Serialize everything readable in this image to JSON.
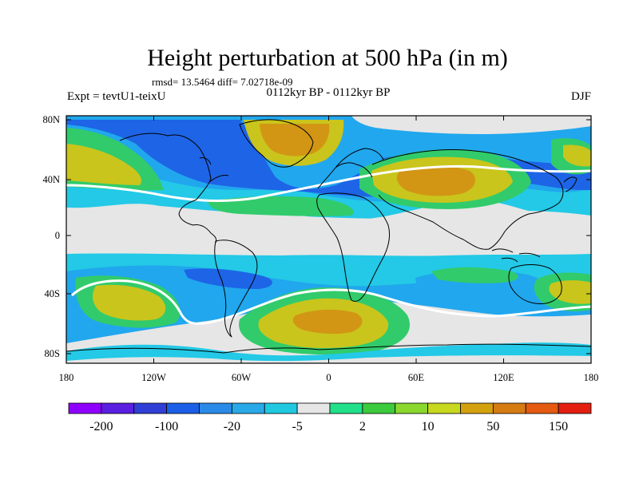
{
  "chart_data": {
    "type": "heatmap",
    "title": "Height perturbation at 500 hPa (in m)",
    "stats_line": "rmsd= 13.5464 diff= 7.02718e-09",
    "left_label": "Expt = tevtU1-teixU",
    "center_label": "0112kyr BP - 0112kyr BP",
    "right_label": "DJF",
    "x_ticks": [
      "180",
      "120W",
      "60W",
      "0",
      "60E",
      "120E",
      "180"
    ],
    "y_ticks": [
      "80N",
      "40N",
      "0",
      "40S",
      "80S"
    ],
    "colorbar_labels": [
      "-200",
      "-100",
      "-20",
      "-5",
      "2",
      "10",
      "50",
      "150"
    ],
    "colorbar_colors": [
      "#8f00ff",
      "#5a1fe0",
      "#2f3fd6",
      "#1a5fe6",
      "#2a8ae8",
      "#29a9e8",
      "#20c8e0",
      "#e6e6e6",
      "#21e08a",
      "#3ccb3c",
      "#8ad72e",
      "#c7d81e",
      "#d4a10e",
      "#d67a12",
      "#e45a10",
      "#e32010"
    ],
    "colors": {
      "band_blue": "#1e64e6",
      "band_lightblue": "#21a7ee",
      "band_cyan": "#23c9e6",
      "neutral": "#e6e6e6",
      "band_green": "#31cb6b",
      "band_lime": "#93d12b",
      "band_yellow": "#c9c51c",
      "band_orange": "#d29614"
    }
  }
}
